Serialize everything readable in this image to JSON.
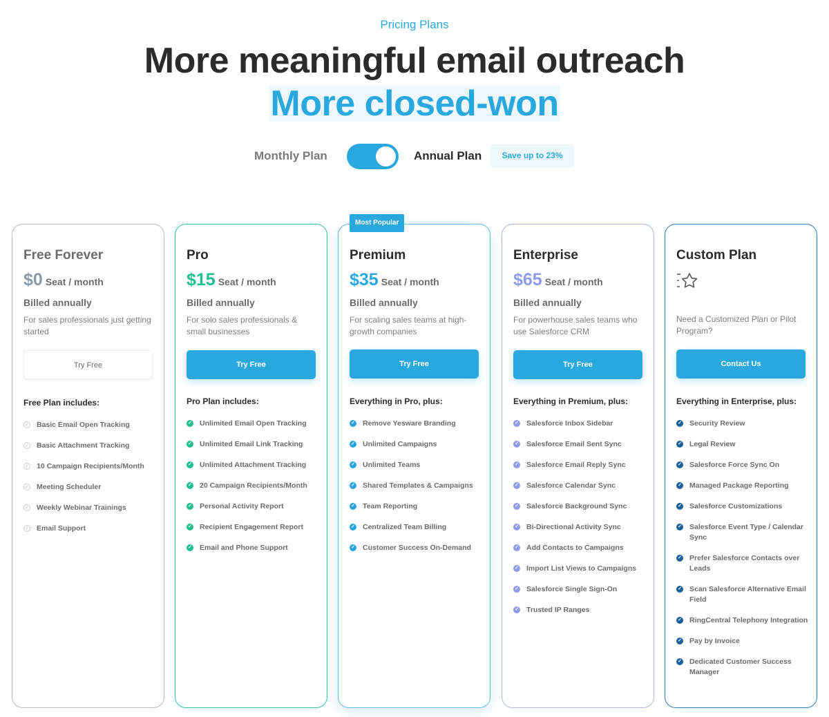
{
  "header": {
    "eyebrow": "Pricing Plans",
    "title_line1": "More meaningful email outreach",
    "title_line2": "More closed-won"
  },
  "billing_toggle": {
    "monthly_label": "Monthly Plan",
    "annual_label": "Annual Plan",
    "selected": "Annual Plan",
    "save_badge": "Save up to 23%"
  },
  "plans": [
    {
      "title": "Free Forever",
      "price": "$0",
      "unit": "Seat / month",
      "billed": "Billed annually",
      "description": "For sales professionals just getting started",
      "button": "Try Free",
      "button_style": "ghost",
      "includes_heading": "Free Plan includes:",
      "border_color": "#b0b8c4",
      "price_color": "#8a9aab",
      "title_color": "#6b6b6b",
      "check_color": "#c8c8c8",
      "check_style": "outline",
      "features": [
        "Basic Email Open Tracking",
        "Basic Attachment Tracking",
        "10 Campaign Recipients/Month",
        "Meeting Scheduler",
        "Weekly Webinar Trainings",
        "Email Support"
      ]
    },
    {
      "title": "Pro",
      "price": "$15",
      "unit": "Seat / month",
      "billed": "Billed annually",
      "description": "For solo sales professionals & small businesses",
      "button": "Try Free",
      "button_style": "filled",
      "includes_heading": "Pro Plan includes:",
      "border_color": "#2ec4a5",
      "price_color": "#1dbf8e",
      "title_color": "#2b2b2b",
      "check_color": "#1dbf8e",
      "check_style": "filled",
      "features": [
        "Unlimited Email Open Tracking",
        "Unlimited Email Link Tracking",
        "Unlimited Attachment Tracking",
        "20 Campaign Recipients/Month",
        "Personal Activity Report",
        "Recipient Engagement Report",
        "Email and Phone Support"
      ]
    },
    {
      "title": "Premium",
      "price": "$35",
      "unit": "Seat / month",
      "billed": "Billed annually",
      "description": "For scaling sales teams at high-growth companies",
      "button": "Try Free",
      "button_style": "filled",
      "badge": "Most Popular",
      "includes_heading": "Everything in Pro, plus:",
      "border_color": "#5dbbe8",
      "price_color": "#29a8e0",
      "title_color": "#2b2b2b",
      "check_color": "#2ba4de",
      "check_style": "filled",
      "features": [
        "Remove Yesware Branding",
        "Unlimited Campaigns",
        "Unlimited Teams",
        "Shared Templates & Campaigns",
        "Team Reporting",
        "Centralized Team Billing",
        "Customer Success On-Demand"
      ]
    },
    {
      "title": "Enterprise",
      "price": "$65",
      "unit": "Seat / month",
      "billed": "Billed annually",
      "description": "For powerhouse sales teams who use Salesforce CRM",
      "button": "Try Free",
      "button_style": "filled",
      "includes_heading": "Everything in Premium, plus:",
      "border_color": "#aab6e6",
      "price_color": "#8e9ce8",
      "title_color": "#2b2b2b",
      "check_color": "#8e9ce8",
      "check_style": "filled",
      "features": [
        "Salesforce Inbox Sidebar",
        "Salesforce Email Sent Sync",
        "Salesforce Email Reply Sync",
        "Salesforce Calendar Sync",
        "Salesforce Background Sync",
        "Bi-Directional Activity Sync",
        "Add Contacts to Campaigns",
        "Import List Views to Campaigns",
        "Salesforce Single Sign-On",
        "Trusted IP Ranges"
      ]
    },
    {
      "title": "Custom Plan",
      "icon": "star-icon",
      "description": "Need a Customized Plan or Pilot Program?",
      "button": "Contact Us",
      "button_style": "filled",
      "includes_heading": "Everything in Enterprise, plus:",
      "border_color": "#2b7ab8",
      "title_color": "#2b2b2b",
      "check_color": "#1c5f9c",
      "check_style": "filled",
      "features": [
        "Security Review",
        "Legal Review",
        "Salesforce Force Sync On",
        "Managed Package Reporting",
        "Salesforce Customizations",
        "Salesforce Event Type / Calendar Sync",
        "Prefer Salesforce Contacts over Leads",
        "Scan Salesforce Alternative Email Field",
        "RingCentral Telephony Integration",
        "Pay by Invoice",
        "Dedicated Customer Success Manager"
      ]
    }
  ]
}
